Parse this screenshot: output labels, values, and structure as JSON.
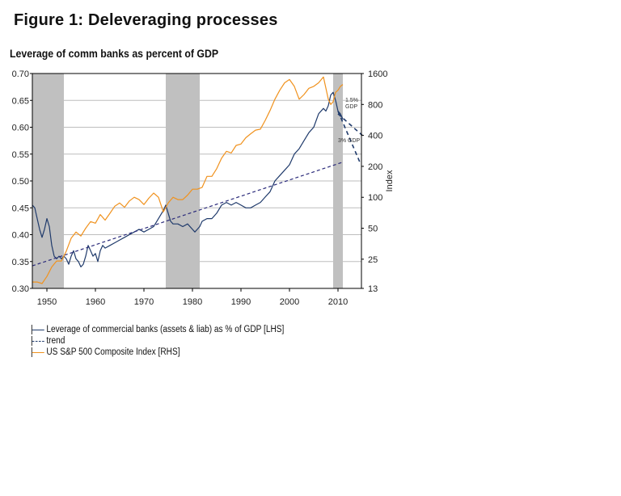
{
  "figure_title": "Figure 1: Deleveraging processes",
  "chart_data": {
    "type": "line",
    "title": "Leverage of comm banks as percent of GDP",
    "xlabel": "",
    "ylabel_left": "",
    "ylabel_right": "Index",
    "xlim": [
      1947,
      2015
    ],
    "ylim_left": [
      0.3,
      0.7
    ],
    "ylim_right": [
      13,
      1600
    ],
    "right_axis_scale": "log",
    "grid": true,
    "legend_position": "bottom-left",
    "x_ticks": [
      "1950",
      "1960",
      "1970",
      "1980",
      "1990",
      "2000",
      "2010"
    ],
    "y_ticks_left": [
      "0.70",
      "0.65",
      "0.60",
      "0.55",
      "0.50",
      "0.45",
      "0.40",
      "0.35",
      "0.30"
    ],
    "y_ticks_right": [
      "1600",
      "800",
      "400",
      "200",
      "100",
      "50",
      "25",
      "13"
    ],
    "shaded_periods": [
      [
        1947,
        1953.5
      ],
      [
        1974.5,
        1981.5
      ],
      [
        2009,
        2011
      ]
    ],
    "series": [
      {
        "name": "Leverage of commercial banks (assets & liab) as % of GDP [LHS]",
        "axis": "left",
        "color": "#1f3a6b",
        "style": "solid",
        "x": [
          1947,
          1947.5,
          1948,
          1948.5,
          1949,
          1949.5,
          1950,
          1950.5,
          1951,
          1951.5,
          1952,
          1952.5,
          1953,
          1953.5,
          1954,
          1954.5,
          1955,
          1955.5,
          1956,
          1956.5,
          1957,
          1957.5,
          1958,
          1958.5,
          1959,
          1959.5,
          1960,
          1960.5,
          1961,
          1961.5,
          1962,
          1963,
          1964,
          1965,
          1966,
          1967,
          1968,
          1969,
          1970,
          1971,
          1972,
          1973,
          1974,
          1974.5,
          1975,
          1975.5,
          1976,
          1977,
          1978,
          1979,
          1980,
          1980.5,
          1981,
          1981.5,
          1982,
          1983,
          1984,
          1985,
          1986,
          1987,
          1988,
          1989,
          1990,
          1991,
          1992,
          1993,
          1994,
          1995,
          1996,
          1997,
          1998,
          1999,
          2000,
          2001,
          2002,
          2003,
          2004,
          2005,
          2006,
          2007,
          2007.5,
          2008,
          2008.5,
          2009,
          2009.5,
          2010,
          2010.5,
          2011
        ],
        "y": [
          0.455,
          0.45,
          0.43,
          0.41,
          0.395,
          0.41,
          0.43,
          0.415,
          0.38,
          0.36,
          0.355,
          0.36,
          0.355,
          0.36,
          0.355,
          0.345,
          0.36,
          0.37,
          0.355,
          0.35,
          0.34,
          0.345,
          0.36,
          0.38,
          0.37,
          0.36,
          0.365,
          0.35,
          0.37,
          0.38,
          0.375,
          0.38,
          0.385,
          0.39,
          0.395,
          0.4,
          0.405,
          0.41,
          0.405,
          0.41,
          0.415,
          0.43,
          0.445,
          0.455,
          0.44,
          0.425,
          0.42,
          0.42,
          0.415,
          0.42,
          0.41,
          0.405,
          0.41,
          0.415,
          0.425,
          0.43,
          0.43,
          0.44,
          0.455,
          0.46,
          0.455,
          0.46,
          0.455,
          0.45,
          0.45,
          0.455,
          0.46,
          0.47,
          0.48,
          0.5,
          0.51,
          0.52,
          0.53,
          0.55,
          0.56,
          0.575,
          0.59,
          0.6,
          0.625,
          0.635,
          0.63,
          0.64,
          0.66,
          0.665,
          0.65,
          0.63,
          0.625,
          0.615
        ]
      },
      {
        "name": "trend",
        "axis": "left",
        "color": "#2a2a7a",
        "style": "dashed",
        "x": [
          1947,
          2011
        ],
        "y": [
          0.342,
          0.535
        ]
      },
      {
        "name": "US S&P 500 Composite Index [RHS]",
        "axis": "right",
        "color": "#f0921e",
        "style": "solid",
        "x": [
          1947,
          1948,
          1949,
          1950,
          1951,
          1952,
          1953,
          1954,
          1955,
          1956,
          1957,
          1958,
          1959,
          1960,
          1961,
          1962,
          1963,
          1964,
          1965,
          1966,
          1967,
          1968,
          1969,
          1970,
          1971,
          1972,
          1973,
          1974,
          1975,
          1976,
          1977,
          1978,
          1979,
          1980,
          1981,
          1982,
          1983,
          1984,
          1985,
          1986,
          1987,
          1988,
          1989,
          1990,
          1991,
          1992,
          1993,
          1994,
          1995,
          1996,
          1997,
          1998,
          1999,
          2000,
          2001,
          2002,
          2003,
          2004,
          2005,
          2006,
          2007,
          2008,
          2008.5,
          2009,
          2009.5,
          2010,
          2010.5,
          2011
        ],
        "y": [
          15,
          15,
          14.5,
          17,
          21,
          24,
          24,
          30,
          40,
          46,
          42,
          50,
          58,
          56,
          68,
          60,
          70,
          82,
          88,
          80,
          92,
          100,
          95,
          85,
          98,
          110,
          100,
          72,
          88,
          100,
          95,
          95,
          105,
          120,
          120,
          125,
          160,
          160,
          190,
          240,
          280,
          270,
          320,
          330,
          380,
          415,
          450,
          460,
          560,
          700,
          900,
          1100,
          1300,
          1400,
          1200,
          900,
          1000,
          1150,
          1200,
          1300,
          1480,
          900,
          800,
          850,
          1050,
          1100,
          1200,
          1250
        ]
      },
      {
        "name": "1.5% GDP projection",
        "axis": "left",
        "color": "#1f3a6b",
        "style": "dashed",
        "x": [
          2010,
          2015
        ],
        "y": [
          0.625,
          0.585
        ]
      },
      {
        "name": "3% GDP projection",
        "axis": "left",
        "color": "#1f3a6b",
        "style": "dashed",
        "x": [
          2010,
          2014.5
        ],
        "y": [
          0.63,
          0.535
        ]
      }
    ],
    "annotations": [
      {
        "text": "1.5%",
        "x": 2011.5,
        "y": 0.647
      },
      {
        "text": "GDP",
        "x": 2011.5,
        "y": 0.635
      },
      {
        "text": "3% GDP",
        "x": 2010,
        "y": 0.572
      }
    ]
  },
  "legend": [
    {
      "label": "Leverage of commercial banks (assets & liab) as % of GDP [LHS]",
      "color": "#1f3a6b",
      "style": "solid"
    },
    {
      "label": "trend",
      "color": "#1f3a6b",
      "style": "dashed"
    },
    {
      "label": "US S&P 500 Composite Index [RHS]",
      "color": "#f0921e",
      "style": "solid"
    }
  ]
}
